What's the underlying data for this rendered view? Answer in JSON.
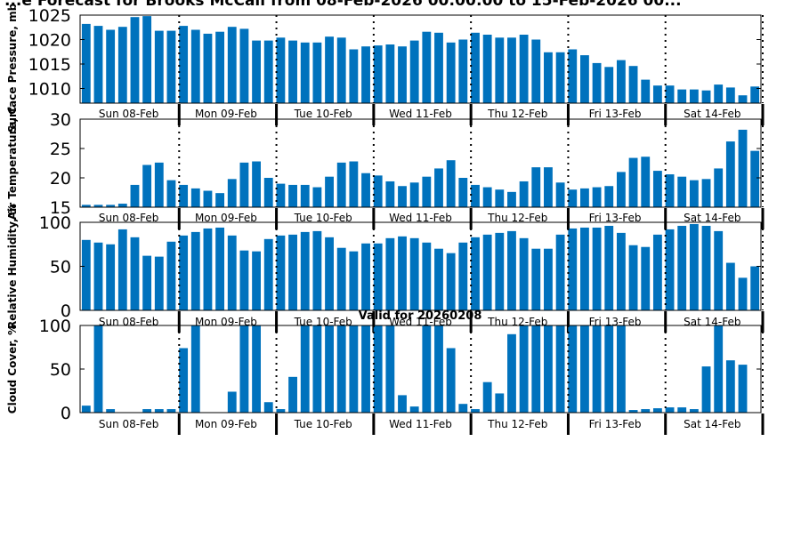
{
  "title": "...e Forecast for Brooks McCall from 08-Feb-2026 00:00:00 to 15-Feb-2026 00...",
  "valid_label": "Valid for 20260208",
  "bar_color": "#0072BD",
  "day_labels": [
    "Sun 08-Feb",
    "Mon 09-Feb",
    "Tue 10-Feb",
    "Wed 11-Feb",
    "Thu 12-Feb",
    "Fri 13-Feb",
    "Sat 14-Feb"
  ],
  "chart_data": [
    {
      "type": "bar",
      "ylabel": "Surface Pressure, mb",
      "ylim": [
        1007,
        1025
      ],
      "yticks": [
        1010,
        1015,
        1020,
        1025
      ],
      "values": [
        1023.2,
        1022.8,
        1022.0,
        1022.6,
        1024.6,
        1024.8,
        1021.8,
        1021.8,
        1022.8,
        1022.0,
        1021.2,
        1021.6,
        1022.6,
        1022.2,
        1019.8,
        1019.8,
        1020.4,
        1019.8,
        1019.4,
        1019.4,
        1020.6,
        1020.4,
        1018.0,
        1018.6,
        1018.8,
        1019.0,
        1018.6,
        1019.8,
        1021.6,
        1021.4,
        1019.4,
        1020.0,
        1021.4,
        1021.0,
        1020.4,
        1020.4,
        1021.0,
        1020.0,
        1017.4,
        1017.4,
        1018.0,
        1016.8,
        1015.2,
        1014.4,
        1015.8,
        1014.6,
        1011.8,
        1010.6,
        1010.6,
        1009.8,
        1009.8,
        1009.6,
        1010.8,
        1010.2,
        1008.6,
        1010.4
      ]
    },
    {
      "type": "bar",
      "ylabel": "Air Temperature, C",
      "ylim": [
        15,
        30
      ],
      "yticks": [
        15,
        20,
        25,
        30
      ],
      "values": [
        15.4,
        15.4,
        15.4,
        15.6,
        18.8,
        22.2,
        22.6,
        19.6,
        18.8,
        18.2,
        17.8,
        17.4,
        19.8,
        22.6,
        22.8,
        20.0,
        19.0,
        18.8,
        18.8,
        18.4,
        20.2,
        22.6,
        22.8,
        20.8,
        20.4,
        19.4,
        18.6,
        19.2,
        20.2,
        21.6,
        23.0,
        20.0,
        18.8,
        18.4,
        18.0,
        17.6,
        19.4,
        21.8,
        21.8,
        19.2,
        18.0,
        18.2,
        18.4,
        18.6,
        21.0,
        23.4,
        23.6,
        21.2,
        20.6,
        20.2,
        19.6,
        19.8,
        21.6,
        26.2,
        28.2,
        24.6
      ]
    },
    {
      "type": "bar",
      "ylabel": "Relative Humidity, %",
      "ylim": [
        0,
        100
      ],
      "yticks": [
        0,
        50,
        100
      ],
      "values": [
        80,
        77,
        75,
        92,
        83,
        62,
        61,
        78,
        85,
        89,
        93,
        94,
        85,
        68,
        67,
        81,
        85,
        86,
        89,
        90,
        83,
        71,
        67,
        76,
        76,
        82,
        84,
        82,
        77,
        70,
        65,
        77,
        83,
        86,
        88,
        90,
        82,
        70,
        70,
        86,
        93,
        94,
        94,
        96,
        88,
        74,
        72,
        86,
        92,
        96,
        98,
        96,
        90,
        54,
        37,
        50
      ]
    },
    {
      "type": "bar",
      "title": "Valid for 20260208",
      "ylabel": "Cloud Cover, %",
      "ylim": [
        0,
        100
      ],
      "yticks": [
        0,
        50,
        100
      ],
      "values": [
        8,
        100,
        4,
        0,
        0,
        4,
        4,
        4,
        74,
        100,
        0,
        0,
        24,
        100,
        100,
        12,
        4,
        41,
        100,
        100,
        100,
        100,
        100,
        100,
        100,
        100,
        20,
        7,
        100,
        100,
        74,
        10,
        4,
        35,
        22,
        90,
        100,
        100,
        100,
        100,
        100,
        100,
        100,
        100,
        100,
        3,
        4,
        5,
        6,
        6,
        4,
        53,
        100,
        60,
        55,
        0
      ]
    }
  ]
}
